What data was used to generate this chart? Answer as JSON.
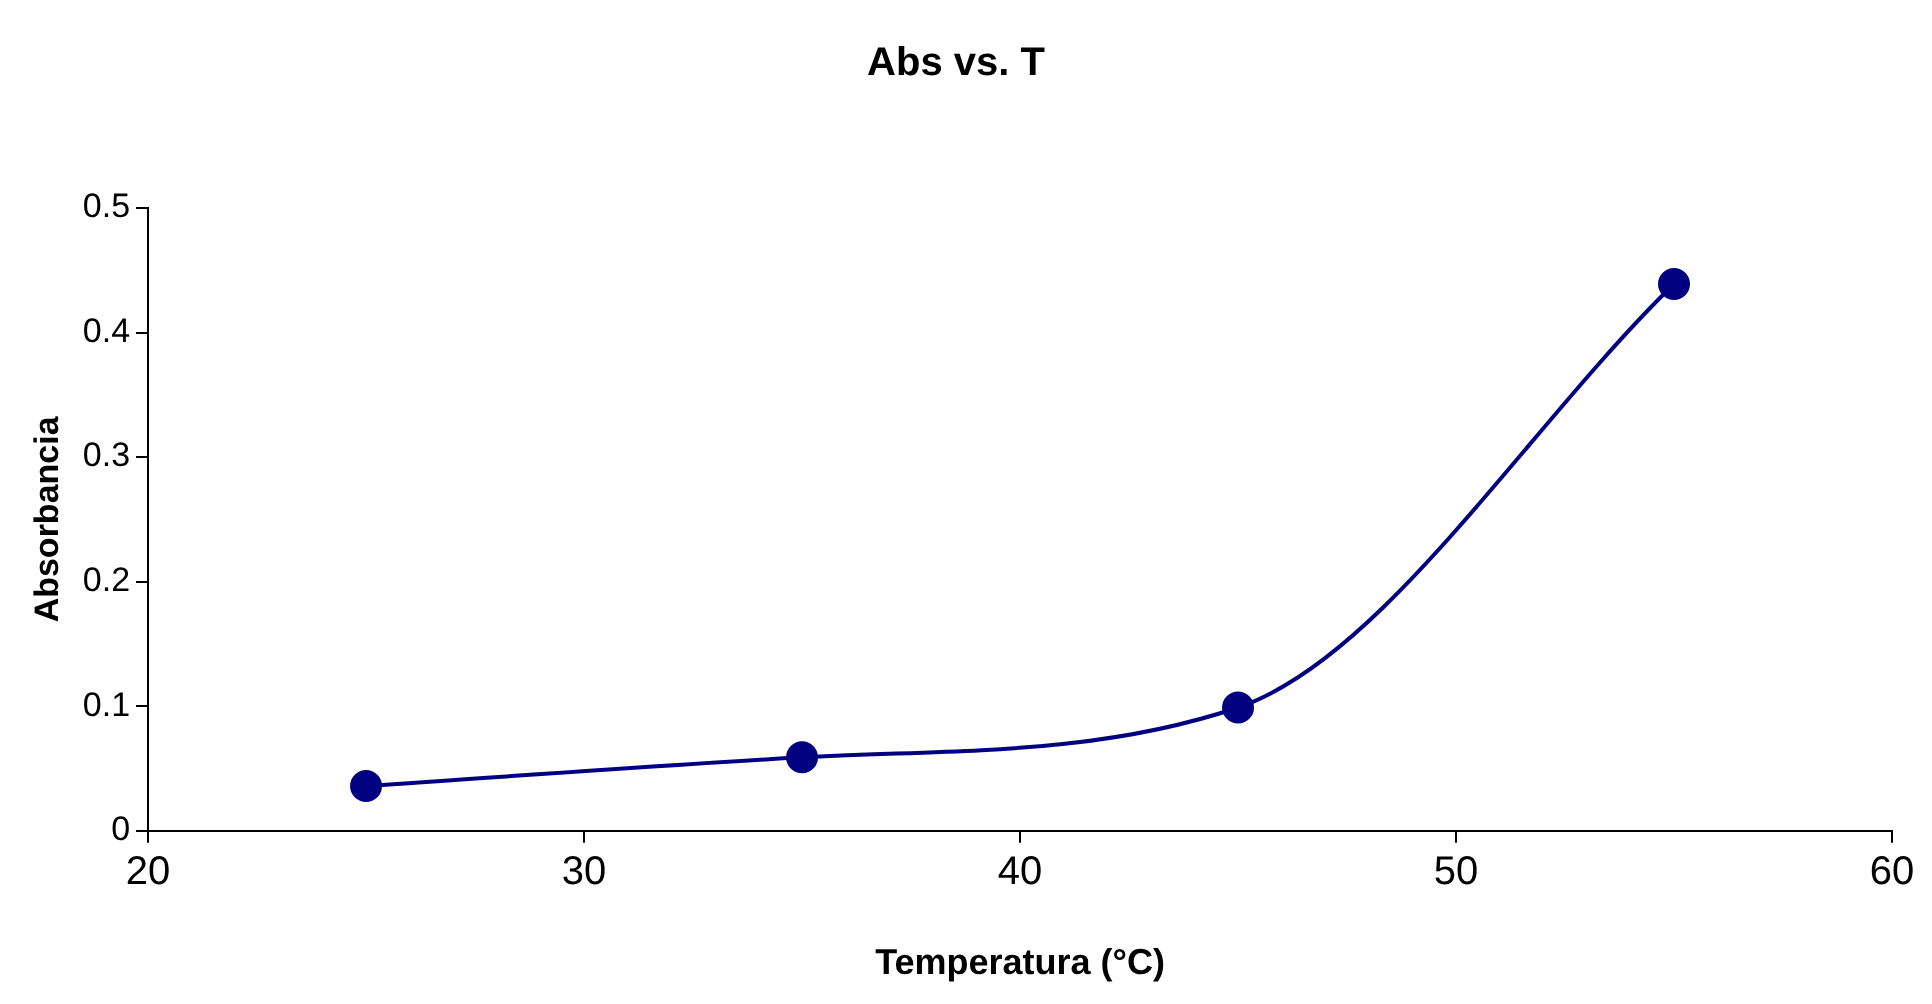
{
  "chart_data": {
    "type": "line",
    "title": "Abs vs. T",
    "xlabel": "Temperatura (°C)",
    "ylabel": "Absorbancia",
    "x": [
      25,
      35,
      45,
      55
    ],
    "series": [
      {
        "color": "#000080",
        "values": [
          0.036,
          0.059,
          0.099,
          0.439
        ]
      }
    ],
    "xlim": [
      20,
      60
    ],
    "xticks": [
      20,
      30,
      40,
      50,
      60
    ],
    "ylim": [
      0,
      0.5
    ],
    "yticks": [
      0,
      0.1,
      0.2,
      0.3,
      0.4,
      0.5
    ],
    "grid": false,
    "legend": false,
    "marker": "circle",
    "line_style": "solid"
  }
}
